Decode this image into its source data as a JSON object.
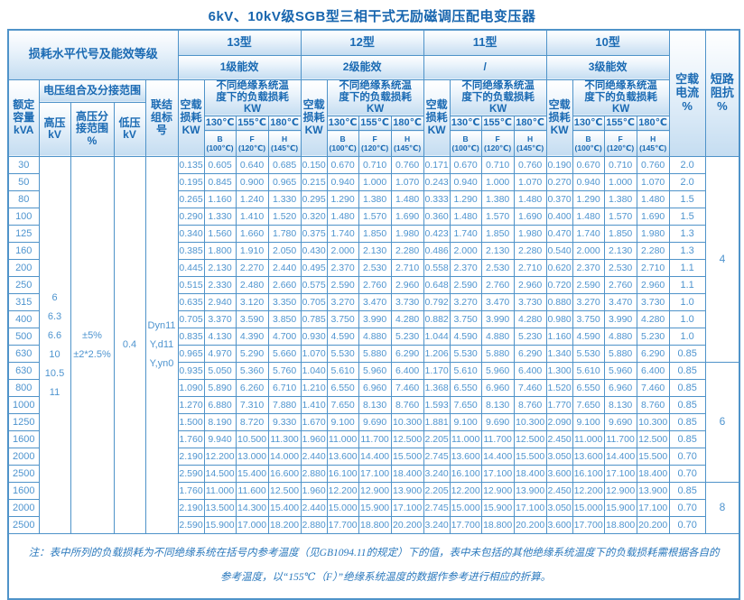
{
  "title": "6kV、10kV级SGB型三相干式无励磁调压配电变压器",
  "colors": {
    "border": "#4f93c9",
    "header_text": "#1a6ab3",
    "data_text": "#4e94cf",
    "title_text": "#1765ae",
    "header_gradient_bottom": "#c5ddf1"
  },
  "header": {
    "loss_level_label": "损耗水平代号及能效等级",
    "types": [
      {
        "model": "13型",
        "efficiency": "1级能效"
      },
      {
        "model": "12型",
        "efficiency": "2级能效"
      },
      {
        "model": "11型",
        "efficiency": "/"
      },
      {
        "model": "10型",
        "efficiency": "3级能效"
      }
    ],
    "no_load_current": "空载\n电流\n%",
    "impedance": "短路\n阻抗\n%",
    "rated_capacity": "额定\n容量\nkVA",
    "voltage_combo": "电压组合及分接范围",
    "hv": "高压\nkV",
    "hv_tap": "高压分\n接范围\n%",
    "lv": "低压\nkV",
    "vector_group": "联结\n组标\n号",
    "no_load_loss": "空载\n损耗\nKW",
    "load_loss": "不同绝缘系统温\n度下的负载损耗\nKW",
    "temps": [
      "130℃",
      "155℃",
      "180℃"
    ],
    "temp_subs": [
      "B\n(100℃)",
      "F\n(120℃)",
      "H\n(145℃)"
    ]
  },
  "left_merged": {
    "hv_values": [
      "6",
      "6.3",
      "6.6",
      "10",
      "10.5",
      "11"
    ],
    "hv_tap_values": [
      "±5%",
      "±2*2.5%"
    ],
    "lv_value": "0.4",
    "vector_groups": [
      "Dyn11",
      "Y,d11",
      "Y,yn0"
    ]
  },
  "groups": [
    {
      "impedance": "4",
      "rows": [
        {
          "kva": "30",
          "v": [
            "0.135",
            "0.605",
            "0.640",
            "0.685",
            "0.150",
            "0.670",
            "0.710",
            "0.760",
            "0.171",
            "0.670",
            "0.710",
            "0.760",
            "0.190",
            "0.670",
            "0.710",
            "0.760"
          ],
          "current": "2.0"
        },
        {
          "kva": "50",
          "v": [
            "0.195",
            "0.845",
            "0.900",
            "0.965",
            "0.215",
            "0.940",
            "1.000",
            "1.070",
            "0.243",
            "0.940",
            "1.000",
            "1.070",
            "0.270",
            "0.940",
            "1.000",
            "1.070"
          ],
          "current": "2.0"
        },
        {
          "kva": "80",
          "v": [
            "0.265",
            "1.160",
            "1.240",
            "1.330",
            "0.295",
            "1.290",
            "1.380",
            "1.480",
            "0.333",
            "1.290",
            "1.380",
            "1.480",
            "0.370",
            "1.290",
            "1.380",
            "1.480"
          ],
          "current": "1.5"
        },
        {
          "kva": "100",
          "v": [
            "0.290",
            "1.330",
            "1.410",
            "1.520",
            "0.320",
            "1.480",
            "1.570",
            "1.690",
            "0.360",
            "1.480",
            "1.570",
            "1.690",
            "0.400",
            "1.480",
            "1.570",
            "1.690"
          ],
          "current": "1.5"
        },
        {
          "kva": "125",
          "v": [
            "0.340",
            "1.560",
            "1.660",
            "1.780",
            "0.375",
            "1.740",
            "1.850",
            "1.980",
            "0.423",
            "1.740",
            "1.850",
            "1.980",
            "0.470",
            "1.740",
            "1.850",
            "1.980"
          ],
          "current": "1.3"
        },
        {
          "kva": "160",
          "v": [
            "0.385",
            "1.800",
            "1.910",
            "2.050",
            "0.430",
            "2.000",
            "2.130",
            "2.280",
            "0.486",
            "2.000",
            "2.130",
            "2.280",
            "0.540",
            "2.000",
            "2.130",
            "2.280"
          ],
          "current": "1.3"
        },
        {
          "kva": "200",
          "v": [
            "0.445",
            "2.130",
            "2.270",
            "2.440",
            "0.495",
            "2.370",
            "2.530",
            "2.710",
            "0.558",
            "2.370",
            "2.530",
            "2.710",
            "0.620",
            "2.370",
            "2.530",
            "2.710"
          ],
          "current": "1.1"
        },
        {
          "kva": "250",
          "v": [
            "0.515",
            "2.330",
            "2.480",
            "2.660",
            "0.575",
            "2.590",
            "2.760",
            "2.960",
            "0.648",
            "2.590",
            "2.760",
            "2.960",
            "0.720",
            "2.590",
            "2.760",
            "2.960"
          ],
          "current": "1.1"
        },
        {
          "kva": "315",
          "v": [
            "0.635",
            "2.940",
            "3.120",
            "3.350",
            "0.705",
            "3.270",
            "3.470",
            "3.730",
            "0.792",
            "3.270",
            "3.470",
            "3.730",
            "0.880",
            "3.270",
            "3.470",
            "3.730"
          ],
          "current": "1.0"
        },
        {
          "kva": "400",
          "v": [
            "0.705",
            "3.370",
            "3.590",
            "3.850",
            "0.785",
            "3.750",
            "3.990",
            "4.280",
            "0.882",
            "3.750",
            "3.990",
            "4.280",
            "0.980",
            "3.750",
            "3.990",
            "4.280"
          ],
          "current": "1.0"
        },
        {
          "kva": "500",
          "v": [
            "0.835",
            "4.130",
            "4.390",
            "4.700",
            "0.930",
            "4.590",
            "4.880",
            "5.230",
            "1.044",
            "4.590",
            "4.880",
            "5.230",
            "1.160",
            "4.590",
            "4.880",
            "5.230"
          ],
          "current": "1.0"
        },
        {
          "kva": "630",
          "v": [
            "0.965",
            "4.970",
            "5.290",
            "5.660",
            "1.070",
            "5.530",
            "5.880",
            "6.290",
            "1.206",
            "5.530",
            "5.880",
            "6.290",
            "1.340",
            "5.530",
            "5.880",
            "6.290"
          ],
          "current": "0.85"
        }
      ]
    },
    {
      "impedance": "6",
      "rows": [
        {
          "kva": "630",
          "v": [
            "0.935",
            "5.050",
            "5.360",
            "5.760",
            "1.040",
            "5.610",
            "5.960",
            "6.400",
            "1.170",
            "5.610",
            "5.960",
            "6.400",
            "1.300",
            "5.610",
            "5.960",
            "6.400"
          ],
          "current": "0.85"
        },
        {
          "kva": "800",
          "v": [
            "1.090",
            "5.890",
            "6.260",
            "6.710",
            "1.210",
            "6.550",
            "6.960",
            "7.460",
            "1.368",
            "6.550",
            "6.960",
            "7.460",
            "1.520",
            "6.550",
            "6.960",
            "7.460"
          ],
          "current": "0.85"
        },
        {
          "kva": "1000",
          "v": [
            "1.270",
            "6.880",
            "7.310",
            "7.880",
            "1.410",
            "7.650",
            "8.130",
            "8.760",
            "1.593",
            "7.650",
            "8.130",
            "8.760",
            "1.770",
            "7.650",
            "8.130",
            "8.760"
          ],
          "current": "0.85"
        },
        {
          "kva": "1250",
          "v": [
            "1.500",
            "8.190",
            "8.720",
            "9.330",
            "1.670",
            "9.100",
            "9.690",
            "10.300",
            "1.881",
            "9.100",
            "9.690",
            "10.300",
            "2.090",
            "9.100",
            "9.690",
            "10.300"
          ],
          "current": "0.85"
        },
        {
          "kva": "1600",
          "v": [
            "1.760",
            "9.940",
            "10.500",
            "11.300",
            "1.960",
            "11.000",
            "11.700",
            "12.500",
            "2.205",
            "11.000",
            "11.700",
            "12.500",
            "2.450",
            "11.000",
            "11.700",
            "12.500"
          ],
          "current": "0.85"
        },
        {
          "kva": "2000",
          "v": [
            "2.190",
            "12.200",
            "13.000",
            "14.000",
            "2.440",
            "13.600",
            "14.400",
            "15.500",
            "2.745",
            "13.600",
            "14.400",
            "15.500",
            "3.050",
            "13.600",
            "14.400",
            "15.500"
          ],
          "current": "0.70"
        },
        {
          "kva": "2500",
          "v": [
            "2.590",
            "14.500",
            "15.400",
            "16.600",
            "2.880",
            "16.100",
            "17.100",
            "18.400",
            "3.240",
            "16.100",
            "17.100",
            "18.400",
            "3.600",
            "16.100",
            "17.100",
            "18.400"
          ],
          "current": "0.70"
        }
      ]
    },
    {
      "impedance": "8",
      "rows": [
        {
          "kva": "1600",
          "v": [
            "1.760",
            "11.000",
            "11.600",
            "12.500",
            "1.960",
            "12.200",
            "12.900",
            "13.900",
            "2.205",
            "12.200",
            "12.900",
            "13.900",
            "2.450",
            "12.200",
            "12.900",
            "13.900"
          ],
          "current": "0.85"
        },
        {
          "kva": "2000",
          "v": [
            "2.190",
            "13.500",
            "14.300",
            "15.400",
            "2.440",
            "15.000",
            "15.900",
            "17.100",
            "2.745",
            "15.000",
            "15.900",
            "17.100",
            "3.050",
            "15.000",
            "15.900",
            "17.100"
          ],
          "current": "0.70"
        },
        {
          "kva": "2500",
          "v": [
            "2.590",
            "15.900",
            "17.000",
            "18.200",
            "2.880",
            "17.700",
            "18.800",
            "20.200",
            "3.240",
            "17.700",
            "18.800",
            "20.200",
            "3.600",
            "17.700",
            "18.800",
            "20.200"
          ],
          "current": "0.70"
        }
      ]
    }
  ],
  "note": {
    "line1": "注：表中所列的负载损耗为不同绝缘系统在括号内参考温度（见GB1094.11的规定）下的值，表中未包括的其他绝缘系统温度下的负载损耗需根据各自的",
    "line2": "参考温度，以“155℃（F）”绝缘系统温度的数据作参考进行相应的折算。"
  }
}
